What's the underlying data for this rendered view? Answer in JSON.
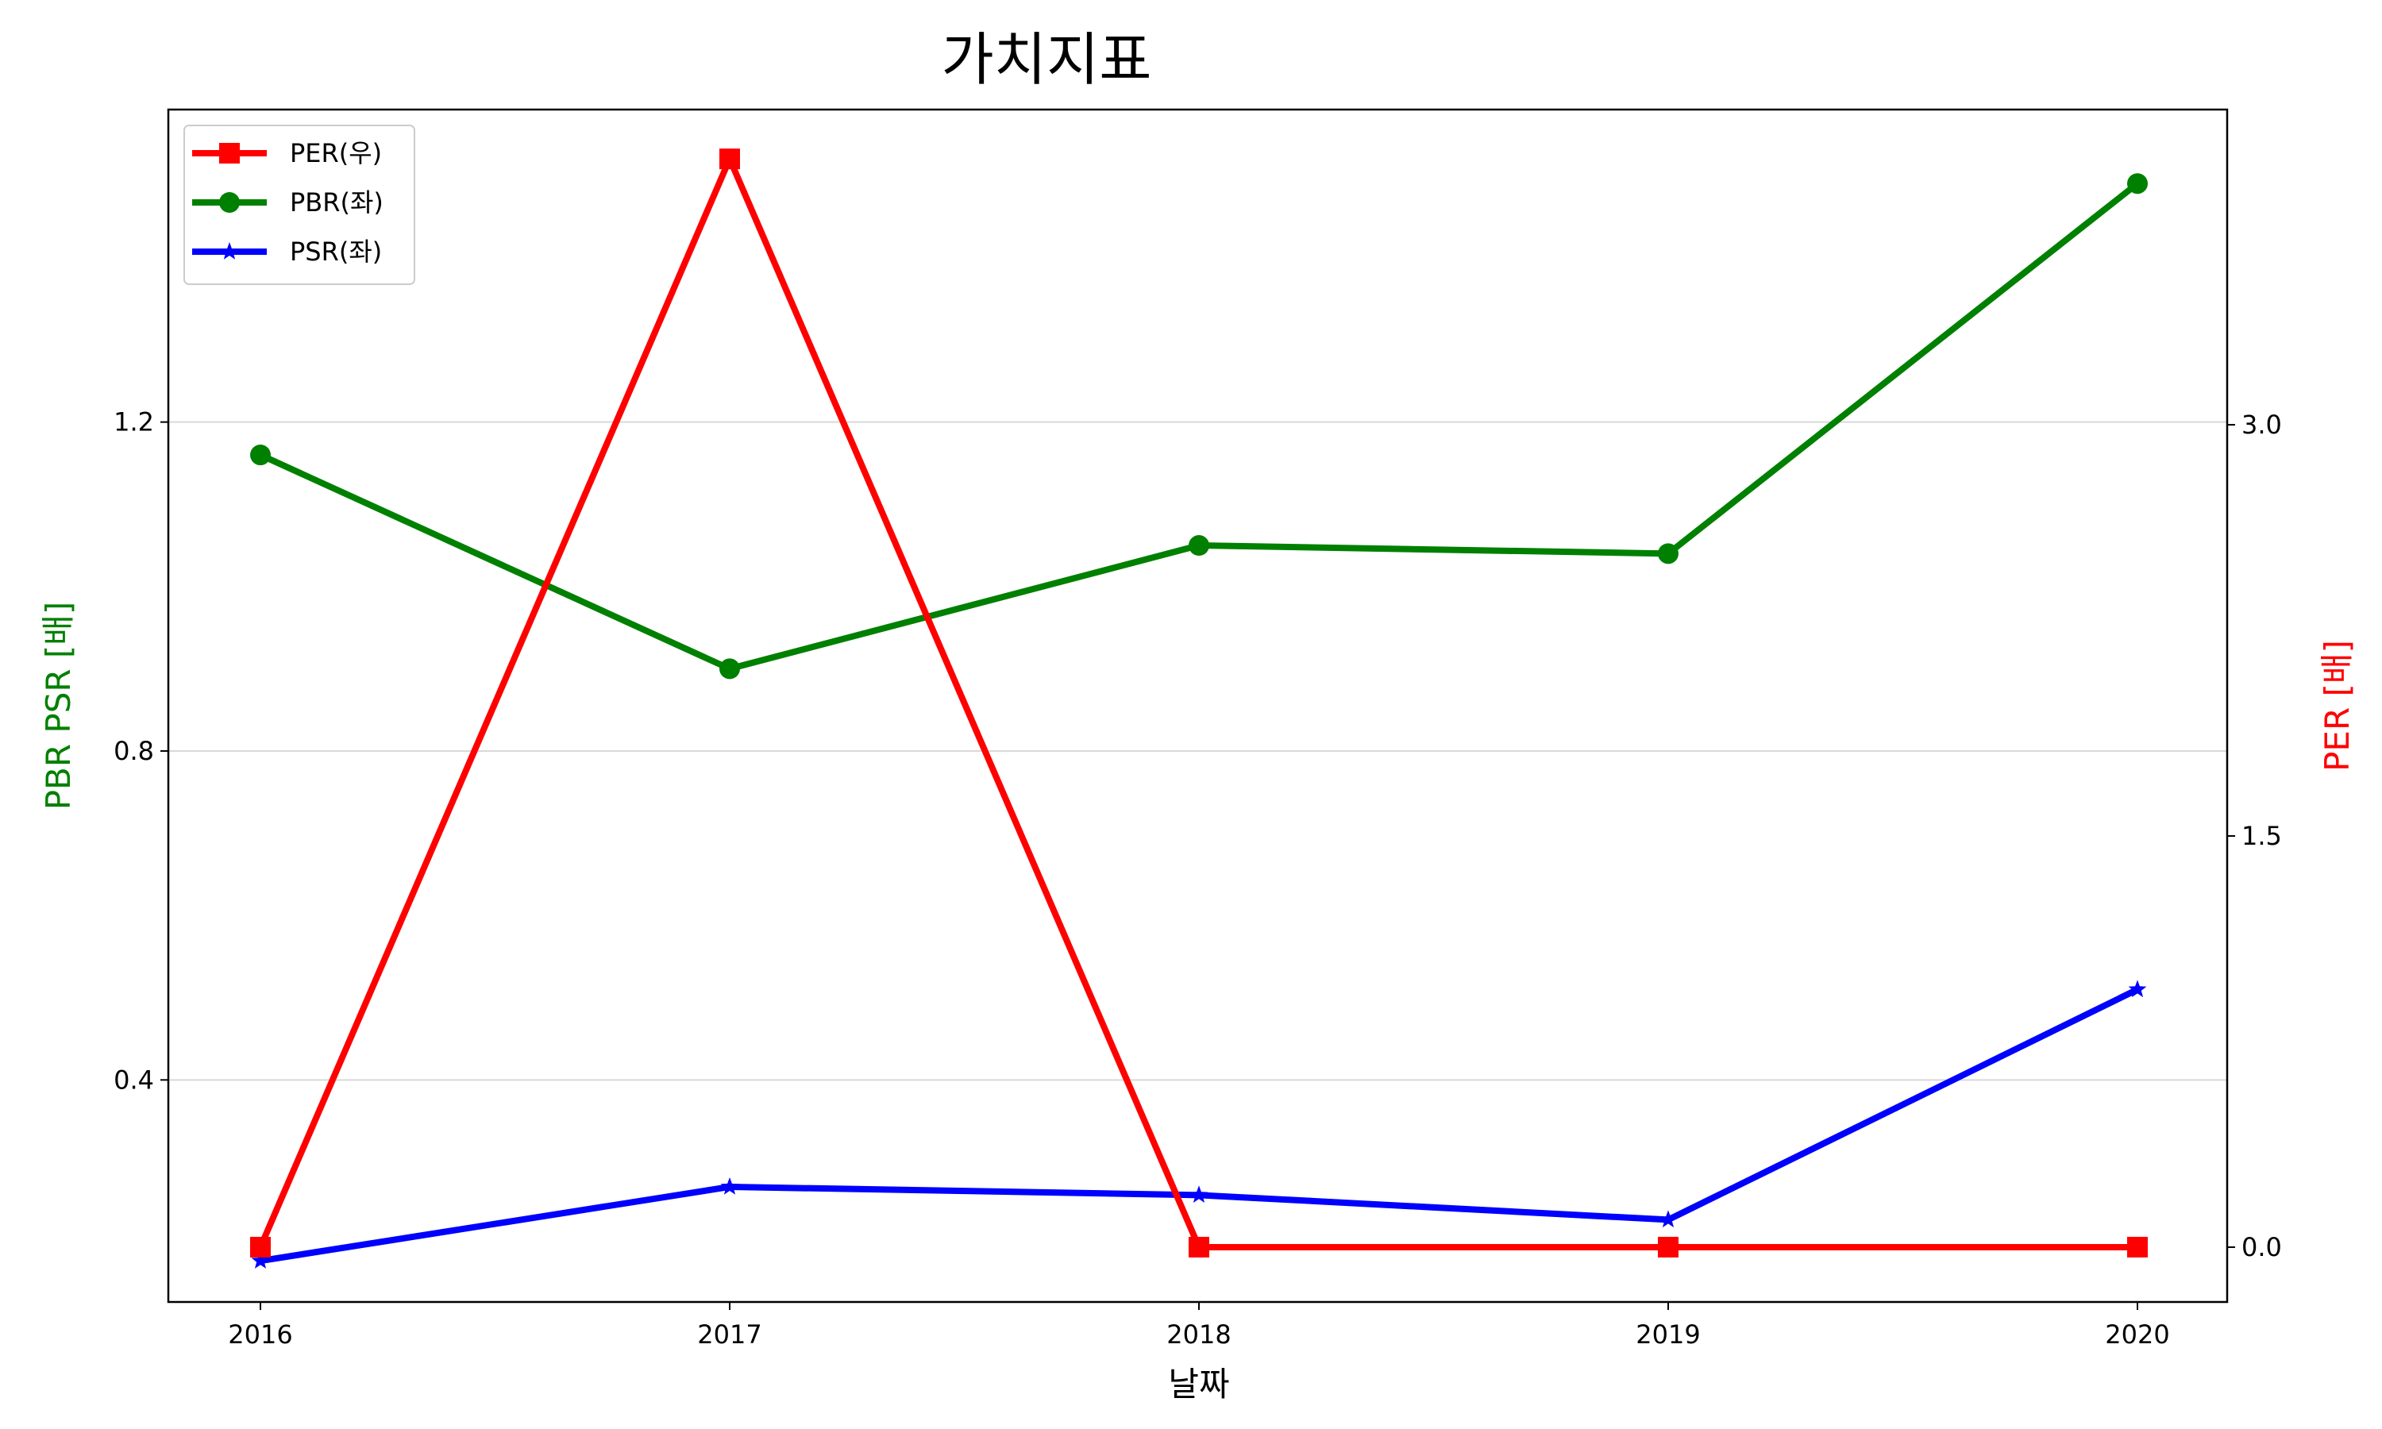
{
  "chart_data": {
    "type": "line",
    "title": "가치지표",
    "xlabel": "날짜",
    "ylabel_left": "PBR PSR [배]",
    "ylabel_right": "PER [배]",
    "x": [
      "2016",
      "2017",
      "2018",
      "2019",
      "2020"
    ],
    "left_axis": {
      "ylim": [
        0.13,
        1.58
      ],
      "ticks": [
        "0.4",
        "0.8",
        "1.2"
      ],
      "tick_values": [
        0.4,
        0.8,
        1.2
      ]
    },
    "right_axis": {
      "ylim": [
        -0.2,
        4.15
      ],
      "ticks": [
        "0.0",
        "1.5",
        "3.0"
      ],
      "tick_values": [
        0.0,
        1.5,
        3.0
      ]
    },
    "grid": "horizontal (left axis)",
    "legend_position": "top-left",
    "series": [
      {
        "name": "PER(우)",
        "axis": "right",
        "color": "#ff0000",
        "marker": "square",
        "values": [
          0.0,
          3.97,
          0.0,
          0.0,
          0.0
        ]
      },
      {
        "name": "PBR(좌)",
        "axis": "left",
        "color": "#008000",
        "marker": "circle",
        "values": [
          1.16,
          0.9,
          1.05,
          1.04,
          1.49
        ]
      },
      {
        "name": "PSR(좌)",
        "axis": "left",
        "color": "#0000ff",
        "marker": "star",
        "values": [
          0.18,
          0.27,
          0.26,
          0.23,
          0.51
        ]
      }
    ]
  }
}
